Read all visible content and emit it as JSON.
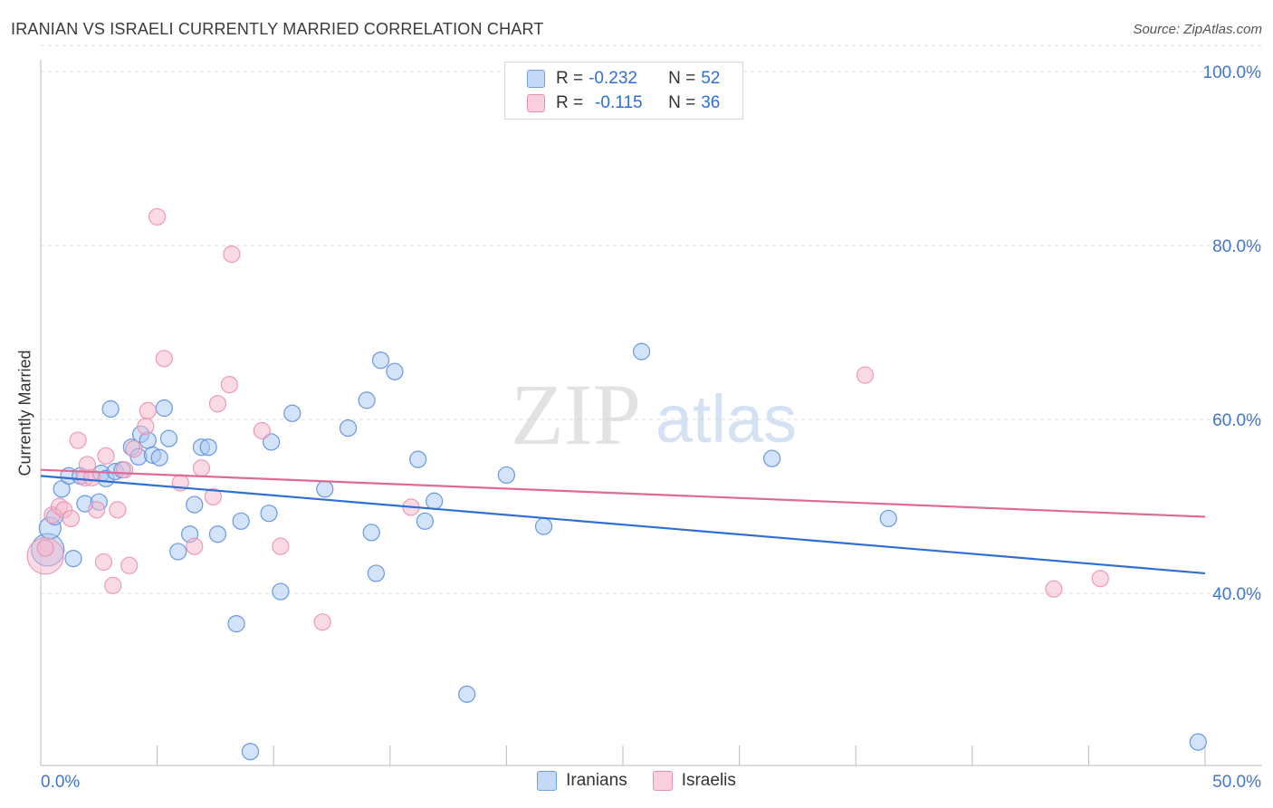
{
  "header": {
    "title": "IRANIAN VS ISRAELI CURRENTLY MARRIED CORRELATION CHART",
    "source": "Source: ZipAtlas.com"
  },
  "watermark": {
    "part1": "ZIP",
    "part2": "atlas"
  },
  "legend": {
    "rows": [
      {
        "r_label": "R =",
        "r_value": "-0.232",
        "n_label": "N =",
        "n_value": "52",
        "color": "#a8c8f4"
      },
      {
        "r_label": "R =",
        "r_value": "-0.115",
        "n_label": "N =",
        "n_value": "36",
        "color": "#f6b8cc"
      }
    ]
  },
  "bottom_legend": {
    "items": [
      {
        "label": "Iranians",
        "color": "#a8c8f4"
      },
      {
        "label": "Israelis",
        "color": "#f6b8cc"
      }
    ]
  },
  "chart_data": {
    "type": "scatter",
    "title": "IRANIAN VS ISRAELI CURRENTLY MARRIED CORRELATION CHART",
    "xlabel": "",
    "ylabel": "Currently Married",
    "xlim": [
      0,
      50
    ],
    "ylim": [
      20,
      103
    ],
    "x_tick_labels": [
      "0.0%",
      "50.0%"
    ],
    "y_ticks": [
      40,
      60,
      80,
      100
    ],
    "y_tick_labels": [
      "40.0%",
      "60.0%",
      "80.0%",
      "100.0%"
    ],
    "grid": true,
    "legend_position": "top-center",
    "series": [
      {
        "name": "Iranians",
        "color": "#5b8fdc",
        "fill": "#a8c8f4",
        "trend": {
          "x": [
            0,
            50
          ],
          "y": [
            53.5,
            42.3
          ],
          "color": "#2f6fd4"
        },
        "points": [
          [
            0.3,
            45.0,
            18
          ],
          [
            0.4,
            47.5,
            12
          ],
          [
            0.6,
            48.8,
            9
          ],
          [
            0.9,
            52.0,
            9
          ],
          [
            1.2,
            53.5,
            9
          ],
          [
            1.4,
            44.0,
            9
          ],
          [
            1.7,
            53.5,
            9
          ],
          [
            1.9,
            50.3,
            9
          ],
          [
            2.5,
            50.5,
            9
          ],
          [
            2.6,
            53.8,
            9
          ],
          [
            2.8,
            53.2,
            9
          ],
          [
            3.0,
            61.2,
            9
          ],
          [
            3.2,
            54.0,
            9
          ],
          [
            3.5,
            54.2,
            9
          ],
          [
            3.9,
            56.8,
            9
          ],
          [
            4.2,
            55.7,
            9
          ],
          [
            4.3,
            58.3,
            9
          ],
          [
            4.6,
            57.6,
            9
          ],
          [
            4.8,
            55.9,
            9
          ],
          [
            5.1,
            55.6,
            9
          ],
          [
            5.3,
            61.3,
            9
          ],
          [
            5.5,
            57.8,
            9
          ],
          [
            5.9,
            44.8,
            9
          ],
          [
            6.4,
            46.8,
            9
          ],
          [
            6.6,
            50.2,
            9
          ],
          [
            6.9,
            56.8,
            9
          ],
          [
            7.2,
            56.8,
            9
          ],
          [
            7.6,
            46.8,
            9
          ],
          [
            8.4,
            36.5,
            9
          ],
          [
            8.6,
            48.3,
            9
          ],
          [
            9.0,
            21.8,
            9
          ],
          [
            9.8,
            49.2,
            9
          ],
          [
            9.9,
            57.4,
            9
          ],
          [
            10.3,
            40.2,
            9
          ],
          [
            10.8,
            60.7,
            9
          ],
          [
            12.2,
            52.0,
            9
          ],
          [
            13.2,
            59.0,
            9
          ],
          [
            14.0,
            62.2,
            9
          ],
          [
            14.2,
            47.0,
            9
          ],
          [
            14.4,
            42.3,
            9
          ],
          [
            14.6,
            66.8,
            9
          ],
          [
            15.2,
            65.5,
            9
          ],
          [
            16.2,
            55.4,
            9
          ],
          [
            16.5,
            48.3,
            9
          ],
          [
            16.9,
            50.6,
            9
          ],
          [
            18.3,
            28.4,
            9
          ],
          [
            20.0,
            53.6,
            9
          ],
          [
            21.6,
            47.7,
            9
          ],
          [
            25.8,
            67.8,
            9
          ],
          [
            31.4,
            55.5,
            9
          ],
          [
            36.4,
            48.6,
            9
          ],
          [
            49.7,
            22.9,
            9
          ]
        ]
      },
      {
        "name": "Israelis",
        "color": "#e991b0",
        "fill": "#f6b8cc",
        "trend": {
          "x": [
            0,
            50
          ],
          "y": [
            54.2,
            48.8
          ],
          "color": "#e06a96"
        },
        "points": [
          [
            0.2,
            44.3,
            20
          ],
          [
            0.5,
            49.0,
            9
          ],
          [
            0.8,
            50.0,
            9
          ],
          [
            1.0,
            49.6,
            9
          ],
          [
            1.3,
            48.6,
            9
          ],
          [
            1.6,
            57.6,
            9
          ],
          [
            1.9,
            53.3,
            9
          ],
          [
            2.0,
            54.8,
            9
          ],
          [
            2.2,
            53.3,
            9
          ],
          [
            2.4,
            49.6,
            9
          ],
          [
            2.7,
            43.6,
            9
          ],
          [
            2.8,
            55.8,
            9
          ],
          [
            3.1,
            40.9,
            9
          ],
          [
            3.3,
            49.6,
            9
          ],
          [
            3.6,
            54.2,
            9
          ],
          [
            3.8,
            43.2,
            9
          ],
          [
            4.0,
            56.6,
            9
          ],
          [
            4.5,
            59.2,
            9
          ],
          [
            4.6,
            61.0,
            9
          ],
          [
            5.0,
            83.3,
            9
          ],
          [
            5.3,
            67.0,
            9
          ],
          [
            6.0,
            52.7,
            9
          ],
          [
            6.6,
            45.4,
            9
          ],
          [
            6.9,
            54.4,
            9
          ],
          [
            7.4,
            51.1,
            9
          ],
          [
            7.6,
            61.8,
            9
          ],
          [
            8.1,
            64.0,
            9
          ],
          [
            8.2,
            79.0,
            9
          ],
          [
            9.5,
            58.7,
            9
          ],
          [
            10.3,
            45.4,
            9
          ],
          [
            12.1,
            36.7,
            9
          ],
          [
            15.9,
            49.9,
            9
          ],
          [
            35.4,
            65.1,
            9
          ],
          [
            43.5,
            40.5,
            9
          ],
          [
            45.5,
            41.7,
            9
          ],
          [
            0.2,
            45.2,
            9
          ]
        ]
      }
    ]
  }
}
